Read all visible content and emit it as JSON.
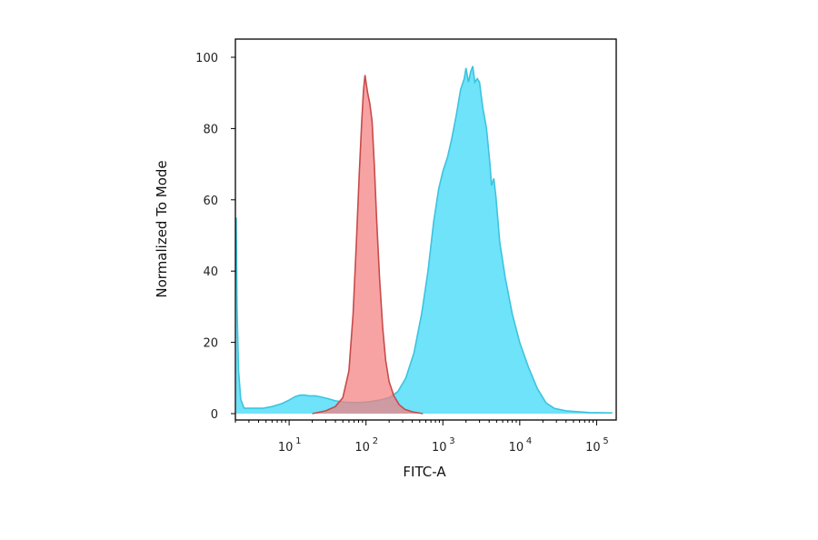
{
  "chart_data": {
    "type": "area",
    "xlabel": "FITC-A",
    "ylabel": "Normalized To Mode",
    "x_scale": "log",
    "xlim": [
      2,
      180000
    ],
    "ylim": [
      0,
      100
    ],
    "grid": false,
    "legend": "none",
    "y_ticks": [
      {
        "value": 0,
        "label": "0"
      },
      {
        "value": 20,
        "label": "20"
      },
      {
        "value": 40,
        "label": "40"
      },
      {
        "value": 60,
        "label": "60"
      },
      {
        "value": 80,
        "label": "80"
      },
      {
        "value": 100,
        "label": "100"
      }
    ],
    "x_ticks": [
      {
        "value": 10,
        "base": "10",
        "exp": "1"
      },
      {
        "value": 100,
        "base": "10",
        "exp": "2"
      },
      {
        "value": 1000,
        "base": "10",
        "exp": "3"
      },
      {
        "value": 10000,
        "base": "10",
        "exp": "4"
      },
      {
        "value": 100000,
        "base": "10",
        "exp": "5"
      }
    ],
    "series": [
      {
        "color": "#5ee0f8",
        "stroke": "#3ec3df",
        "points": [
          [
            2.05,
            55
          ],
          [
            2.1,
            30
          ],
          [
            2.2,
            12
          ],
          [
            2.35,
            4
          ],
          [
            2.6,
            1.5
          ],
          [
            3.2,
            1.5
          ],
          [
            4.5,
            1.5
          ],
          [
            6,
            2
          ],
          [
            8,
            2.8
          ],
          [
            10,
            3.8
          ],
          [
            12,
            4.8
          ],
          [
            14,
            5.2
          ],
          [
            16,
            5.2
          ],
          [
            18,
            5
          ],
          [
            22,
            5
          ],
          [
            27,
            4.6
          ],
          [
            32,
            4.2
          ],
          [
            40,
            3.6
          ],
          [
            55,
            3.2
          ],
          [
            80,
            3.1
          ],
          [
            110,
            3.3
          ],
          [
            150,
            3.8
          ],
          [
            200,
            4.5
          ],
          [
            260,
            6.2
          ],
          [
            330,
            10
          ],
          [
            420,
            17
          ],
          [
            530,
            28
          ],
          [
            640,
            40
          ],
          [
            760,
            54
          ],
          [
            880,
            63
          ],
          [
            1000,
            68
          ],
          [
            1150,
            72
          ],
          [
            1300,
            77
          ],
          [
            1500,
            84
          ],
          [
            1700,
            91
          ],
          [
            1900,
            94
          ],
          [
            2000,
            97
          ],
          [
            2150,
            93
          ],
          [
            2300,
            96
          ],
          [
            2450,
            97.5
          ],
          [
            2600,
            93
          ],
          [
            2800,
            94
          ],
          [
            3000,
            93
          ],
          [
            3300,
            86
          ],
          [
            3700,
            80
          ],
          [
            4100,
            70
          ],
          [
            4300,
            64
          ],
          [
            4600,
            66
          ],
          [
            4900,
            61
          ],
          [
            5500,
            48
          ],
          [
            6500,
            38
          ],
          [
            8000,
            28
          ],
          [
            10000,
            20
          ],
          [
            13000,
            13
          ],
          [
            17000,
            7
          ],
          [
            22000,
            3
          ],
          [
            28000,
            1.5
          ],
          [
            40000,
            0.8
          ],
          [
            80000,
            0.3
          ],
          [
            160000,
            0.2
          ]
        ]
      },
      {
        "color": "#f58080",
        "stroke": "#c84a4a",
        "points": [
          [
            20,
            0
          ],
          [
            30,
            0.8
          ],
          [
            40,
            2
          ],
          [
            50,
            4.5
          ],
          [
            60,
            12
          ],
          [
            68,
            28
          ],
          [
            75,
            48
          ],
          [
            82,
            68
          ],
          [
            88,
            82
          ],
          [
            93,
            91
          ],
          [
            97,
            95
          ],
          [
            100,
            93
          ],
          [
            105,
            90
          ],
          [
            112,
            87
          ],
          [
            120,
            82
          ],
          [
            128,
            70
          ],
          [
            137,
            55
          ],
          [
            150,
            38
          ],
          [
            165,
            24
          ],
          [
            180,
            15
          ],
          [
            200,
            9
          ],
          [
            230,
            5
          ],
          [
            270,
            2.5
          ],
          [
            320,
            1.2
          ],
          [
            400,
            0.5
          ],
          [
            550,
            0
          ]
        ]
      }
    ]
  }
}
